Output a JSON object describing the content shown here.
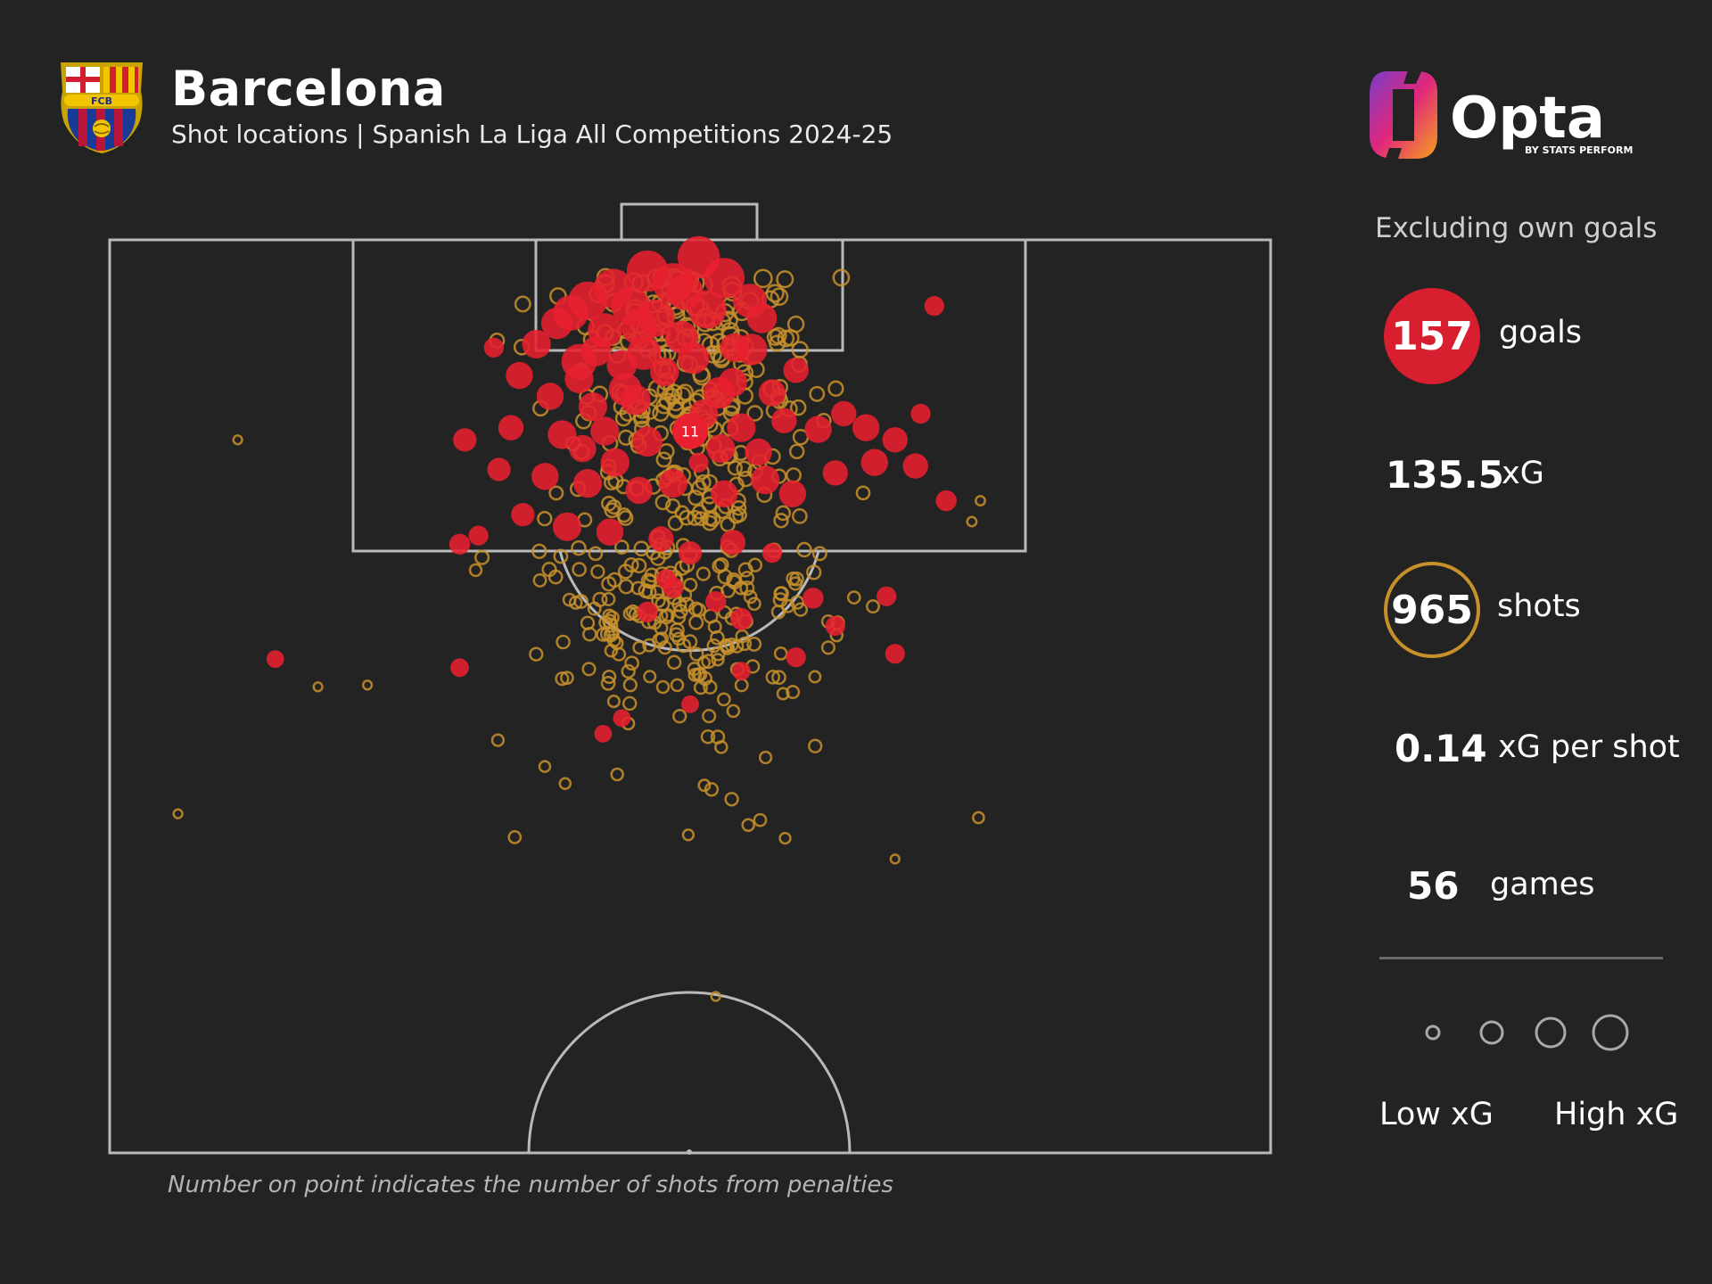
{
  "header": {
    "team": "Barcelona",
    "subtitle": "Shot locations | Spanish La Liga All Competitions 2024-25",
    "crest_text": "FCB",
    "brand_name": "Opta",
    "brand_tagline": "BY STATS PERFORM"
  },
  "sidebar": {
    "note": "Excluding own goals",
    "stats": [
      {
        "value": "157",
        "label": "goals"
      },
      {
        "value": "135.5",
        "label": "xG"
      },
      {
        "value": "965",
        "label": "shots"
      },
      {
        "value": "0.14",
        "label": "xG per shot"
      },
      {
        "value": "56",
        "label": "games"
      }
    ],
    "legend": {
      "low": "Low xG",
      "high": "High xG"
    }
  },
  "footnote": "Number on point indicates the number of shots from penalties",
  "colors": {
    "background": "#232323",
    "goal": "#e8202f",
    "shot": "#c8902a",
    "pitch_lines": "#b9b9b9"
  },
  "chart_data": {
    "type": "scatter",
    "description_note": "Half-pitch shot map; values are approximate pitch coordinates in metres (x: 0-68 across the pitch, y: distance from goal line) and xG per shot",
    "pitch": {
      "width_m": 68,
      "half_length_m": 52.5
    },
    "penalty_marker": {
      "x": 34,
      "y": 11,
      "label": "11",
      "penalties": 11
    },
    "series": [
      {
        "name": "goals",
        "points": [
          {
            "x": 34.5,
            "y": 1.0,
            "xg": 0.9
          },
          {
            "x": 31.5,
            "y": 1.8,
            "xg": 0.85
          },
          {
            "x": 33.0,
            "y": 2.5,
            "xg": 0.8
          },
          {
            "x": 29.5,
            "y": 2.8,
            "xg": 0.75
          },
          {
            "x": 36.0,
            "y": 2.2,
            "xg": 0.8
          },
          {
            "x": 28.0,
            "y": 3.5,
            "xg": 0.7
          },
          {
            "x": 30.5,
            "y": 3.8,
            "xg": 0.7
          },
          {
            "x": 35.0,
            "y": 4.0,
            "xg": 0.7
          },
          {
            "x": 27.0,
            "y": 4.2,
            "xg": 0.55
          },
          {
            "x": 32.0,
            "y": 4.5,
            "xg": 0.65
          },
          {
            "x": 37.5,
            "y": 3.5,
            "xg": 0.5
          },
          {
            "x": 26.2,
            "y": 4.8,
            "xg": 0.4
          },
          {
            "x": 29.0,
            "y": 5.2,
            "xg": 0.5
          },
          {
            "x": 33.5,
            "y": 5.6,
            "xg": 0.45
          },
          {
            "x": 31.0,
            "y": 5.0,
            "xg": 0.6
          },
          {
            "x": 38.2,
            "y": 4.5,
            "xg": 0.35
          },
          {
            "x": 25.0,
            "y": 6.0,
            "xg": 0.3
          },
          {
            "x": 28.5,
            "y": 6.4,
            "xg": 0.35
          },
          {
            "x": 34.2,
            "y": 6.8,
            "xg": 0.4
          },
          {
            "x": 36.6,
            "y": 6.2,
            "xg": 0.3
          },
          {
            "x": 30.0,
            "y": 7.2,
            "xg": 0.35
          },
          {
            "x": 32.5,
            "y": 7.6,
            "xg": 0.3
          },
          {
            "x": 27.5,
            "y": 8.0,
            "xg": 0.3
          },
          {
            "x": 24.0,
            "y": 7.8,
            "xg": 0.25
          },
          {
            "x": 36.5,
            "y": 8.2,
            "xg": 0.3
          },
          {
            "x": 38.8,
            "y": 8.8,
            "xg": 0.25
          },
          {
            "x": 40.2,
            "y": 7.5,
            "xg": 0.2
          },
          {
            "x": 25.8,
            "y": 9.0,
            "xg": 0.25
          },
          {
            "x": 28.3,
            "y": 9.6,
            "xg": 0.3
          },
          {
            "x": 30.8,
            "y": 9.2,
            "xg": 0.35
          },
          {
            "x": 34.8,
            "y": 10.0,
            "xg": 0.3
          },
          {
            "x": 37.0,
            "y": 10.8,
            "xg": 0.3
          },
          {
            "x": 39.5,
            "y": 10.4,
            "xg": 0.2
          },
          {
            "x": 23.5,
            "y": 10.8,
            "xg": 0.2
          },
          {
            "x": 26.5,
            "y": 11.2,
            "xg": 0.3
          },
          {
            "x": 29.0,
            "y": 11.0,
            "xg": 0.3
          },
          {
            "x": 31.5,
            "y": 11.6,
            "xg": 0.35
          },
          {
            "x": 35.8,
            "y": 12.0,
            "xg": 0.3
          },
          {
            "x": 38.0,
            "y": 12.2,
            "xg": 0.25
          },
          {
            "x": 41.5,
            "y": 10.9,
            "xg": 0.25
          },
          {
            "x": 43.0,
            "y": 10.0,
            "xg": 0.2
          },
          {
            "x": 44.3,
            "y": 10.8,
            "xg": 0.25
          },
          {
            "x": 46.0,
            "y": 11.5,
            "xg": 0.2
          },
          {
            "x": 20.8,
            "y": 11.5,
            "xg": 0.15
          },
          {
            "x": 22.8,
            "y": 13.2,
            "xg": 0.15
          },
          {
            "x": 25.5,
            "y": 13.6,
            "xg": 0.25
          },
          {
            "x": 28.0,
            "y": 14.0,
            "xg": 0.3
          },
          {
            "x": 31.0,
            "y": 14.4,
            "xg": 0.25
          },
          {
            "x": 33.0,
            "y": 14.0,
            "xg": 0.3
          },
          {
            "x": 36.0,
            "y": 14.6,
            "xg": 0.25
          },
          {
            "x": 38.4,
            "y": 13.8,
            "xg": 0.3
          },
          {
            "x": 40.0,
            "y": 14.6,
            "xg": 0.25
          },
          {
            "x": 42.5,
            "y": 13.4,
            "xg": 0.2
          },
          {
            "x": 44.8,
            "y": 12.8,
            "xg": 0.25
          },
          {
            "x": 47.2,
            "y": 13.0,
            "xg": 0.2
          },
          {
            "x": 24.2,
            "y": 15.8,
            "xg": 0.15
          },
          {
            "x": 26.8,
            "y": 16.5,
            "xg": 0.3
          },
          {
            "x": 29.3,
            "y": 16.8,
            "xg": 0.25
          },
          {
            "x": 32.3,
            "y": 17.2,
            "xg": 0.2
          },
          {
            "x": 34.0,
            "y": 18.0,
            "xg": 0.15
          },
          {
            "x": 36.5,
            "y": 17.4,
            "xg": 0.2
          },
          {
            "x": 20.5,
            "y": 17.5,
            "xg": 0.1
          },
          {
            "x": 49.0,
            "y": 15.0,
            "xg": 0.1
          },
          {
            "x": 22.5,
            "y": 6.2,
            "xg": 0.08
          },
          {
            "x": 48.3,
            "y": 3.8,
            "xg": 0.08
          },
          {
            "x": 47.5,
            "y": 10.0,
            "xg": 0.08
          },
          {
            "x": 34.5,
            "y": 12.8,
            "xg": 0.08
          },
          {
            "x": 21.6,
            "y": 17.0,
            "xg": 0.08
          },
          {
            "x": 38.8,
            "y": 18.0,
            "xg": 0.08
          },
          {
            "x": 33.0,
            "y": 20.0,
            "xg": 0.1
          },
          {
            "x": 35.5,
            "y": 20.8,
            "xg": 0.1
          },
          {
            "x": 31.5,
            "y": 21.4,
            "xg": 0.1
          },
          {
            "x": 37.0,
            "y": 21.8,
            "xg": 0.12
          },
          {
            "x": 41.2,
            "y": 20.6,
            "xg": 0.1
          },
          {
            "x": 42.5,
            "y": 22.2,
            "xg": 0.08
          },
          {
            "x": 45.5,
            "y": 20.5,
            "xg": 0.08
          },
          {
            "x": 46.0,
            "y": 23.8,
            "xg": 0.08
          },
          {
            "x": 40.2,
            "y": 24.0,
            "xg": 0.08
          },
          {
            "x": 37.0,
            "y": 24.8,
            "xg": 0.06
          },
          {
            "x": 20.5,
            "y": 24.6,
            "xg": 0.06
          },
          {
            "x": 9.7,
            "y": 24.1,
            "xg": 0.05
          },
          {
            "x": 30.0,
            "y": 27.5,
            "xg": 0.05
          },
          {
            "x": 34.0,
            "y": 26.7,
            "xg": 0.05
          },
          {
            "x": 28.9,
            "y": 28.4,
            "xg": 0.05
          },
          {
            "x": 32.6,
            "y": 19.5,
            "xg": 0.08
          },
          {
            "x": 27.5,
            "y": 7.0,
            "xg": 0.55
          },
          {
            "x": 30.2,
            "y": 8.6,
            "xg": 0.45
          },
          {
            "x": 37.6,
            "y": 6.3,
            "xg": 0.4
          },
          {
            "x": 33.7,
            "y": 3.0,
            "xg": 0.6
          },
          {
            "x": 31.3,
            "y": 6.5,
            "xg": 0.5
          },
          {
            "x": 35.7,
            "y": 8.8,
            "xg": 0.4
          },
          {
            "x": 29.6,
            "y": 12.8,
            "xg": 0.3
          },
          {
            "x": 27.7,
            "y": 12.0,
            "xg": 0.25
          }
        ]
      },
      {
        "name": "shots",
        "points": []
      }
    ]
  }
}
